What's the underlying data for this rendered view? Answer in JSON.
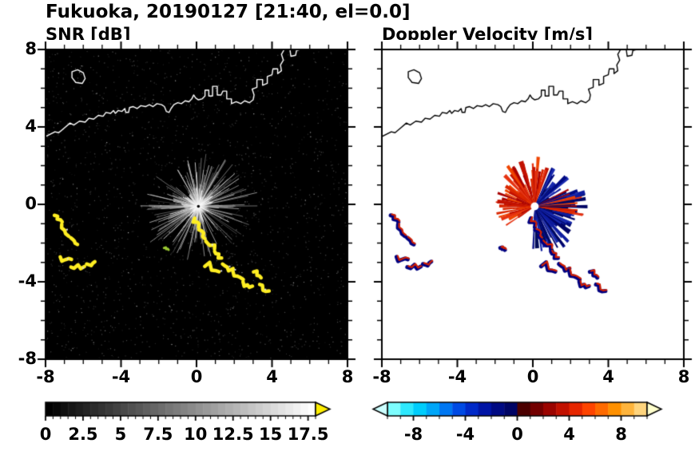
{
  "title": "Fukuoka, 20190127 [21:40, el=0.0]",
  "panels": {
    "snr": {
      "title": "SNR [dB]",
      "background": "#000000",
      "coast_color": "#ffffff",
      "echo_color": "#ffee22",
      "colorbar": {
        "min": 0,
        "max": 18,
        "scale": "grayscale",
        "tick_labels": [
          "0",
          "2.5",
          "5",
          "7.5",
          "10",
          "12.5",
          "15",
          "17.5"
        ],
        "tick_values": [
          0,
          2.5,
          5,
          7.5,
          10,
          12.5,
          15,
          17.5
        ],
        "arrow_color": "#ffee00"
      }
    },
    "velocity": {
      "title": "Doppler Velocity [m/s]",
      "background": "#ffffff",
      "coast_color": "#000000",
      "toward_color": "#000080",
      "away_color": "#d42000",
      "colorbar": {
        "min": -10,
        "max": 10,
        "tick_labels": [
          "-8",
          "-4",
          "0",
          "4",
          "8"
        ],
        "tick_values": [
          -8,
          -4,
          0,
          4,
          8
        ],
        "left_arrow_color": "#ccffff",
        "right_arrow_color": "#ffffcc",
        "segment_colors": [
          "#7dfdfe",
          "#2ee8fd",
          "#00cdfc",
          "#00a6f8",
          "#0077f2",
          "#004ae4",
          "#0029c8",
          "#0014a5",
          "#000a83",
          "#000465",
          "#4b0000",
          "#730000",
          "#9b0400",
          "#c21100",
          "#e62600",
          "#fe4400",
          "#fe6a00",
          "#fe9000",
          "#feb43c",
          "#fed47d"
        ]
      }
    }
  },
  "axes": {
    "x_range": [
      -8,
      8
    ],
    "y_range": [
      -8,
      8
    ],
    "x_tick_labels": [
      "-8",
      "-4",
      "0",
      "4",
      "8"
    ],
    "x_tick_values": [
      -8,
      -4,
      0,
      4,
      8
    ],
    "y_tick_labels": [
      "8",
      "4",
      "0",
      "-4",
      "-8"
    ],
    "y_tick_values": [
      8,
      4,
      0,
      -4,
      -8
    ],
    "minor_tick_step": 1
  },
  "chart_data": [
    {
      "type": "heatmap",
      "title": "SNR [dB]",
      "x_range": [
        -8,
        8
      ],
      "y_range": [
        -8,
        8
      ],
      "x_ticks": [
        -8,
        -4,
        0,
        4,
        8
      ],
      "y_ticks": [
        -8,
        -4,
        0,
        4,
        8
      ],
      "colorbar": {
        "range": [
          0,
          18
        ],
        "ticks": [
          0,
          2.5,
          5,
          7.5,
          10,
          12.5,
          15,
          17.5
        ],
        "scale": "grayscale"
      },
      "radar_site": [
        0.1,
        -0.1
      ],
      "clutter_max_radius": 3.2,
      "echo_tracks": [
        [
          -7.35,
          -0.75,
          0.5,
          -60
        ],
        [
          -7.0,
          -1.35,
          0.7,
          -70
        ],
        [
          -6.55,
          -1.95,
          0.5,
          -50
        ],
        [
          -6.95,
          -2.85,
          0.6,
          -20
        ],
        [
          -6.3,
          -3.25,
          0.7,
          -10
        ],
        [
          -5.6,
          -3.05,
          0.45,
          10
        ],
        [
          0.0,
          -0.95,
          0.5,
          -55
        ],
        [
          0.35,
          -1.5,
          0.55,
          -60
        ],
        [
          0.8,
          -2.05,
          0.6,
          -50
        ],
        [
          1.15,
          -2.6,
          0.5,
          -45
        ],
        [
          0.85,
          -3.2,
          0.8,
          -15
        ],
        [
          1.6,
          -3.3,
          0.6,
          -30
        ],
        [
          2.2,
          -3.65,
          0.7,
          -25
        ],
        [
          2.7,
          -4.15,
          0.55,
          -20
        ],
        [
          3.25,
          -3.6,
          0.5,
          -35
        ],
        [
          3.6,
          -4.3,
          0.6,
          -30
        ],
        [
          -1.6,
          -2.3,
          0.25,
          -40
        ]
      ]
    },
    {
      "type": "heatmap",
      "title": "Doppler Velocity [m/s]",
      "x_range": [
        -8,
        8
      ],
      "y_range": [
        -8,
        8
      ],
      "x_ticks": [
        -8,
        -4,
        0,
        4,
        8
      ],
      "y_ticks": [
        -8,
        -4,
        0,
        4,
        8
      ],
      "colorbar": {
        "range": [
          -10,
          10
        ],
        "ticks": [
          -8,
          -4,
          0,
          4,
          8
        ]
      },
      "radar_site": [
        0.1,
        -0.1
      ],
      "receding_sector_deg": [
        70,
        215
      ],
      "approaching_sector_deg": [
        -95,
        65
      ]
    }
  ],
  "coastline": {
    "main": [
      [
        -8.0,
        3.5
      ],
      [
        -7.5,
        3.75
      ],
      [
        -7.3,
        3.7
      ],
      [
        -7.0,
        3.95
      ],
      [
        -6.7,
        4.2
      ],
      [
        -6.5,
        4.1
      ],
      [
        -6.2,
        4.3
      ],
      [
        -5.9,
        4.25
      ],
      [
        -5.7,
        4.45
      ],
      [
        -5.45,
        4.4
      ],
      [
        -5.2,
        4.6
      ],
      [
        -4.95,
        4.55
      ],
      [
        -4.8,
        4.75
      ],
      [
        -4.55,
        4.7
      ],
      [
        -4.4,
        4.85
      ],
      [
        -4.3,
        4.7
      ],
      [
        -4.15,
        4.85
      ],
      [
        -3.95,
        4.8
      ],
      [
        -3.8,
        4.95
      ],
      [
        -3.75,
        4.75
      ],
      [
        -3.6,
        4.75
      ],
      [
        -3.55,
        5.0
      ],
      [
        -3.35,
        5.05
      ],
      [
        -3.15,
        4.95
      ],
      [
        -2.95,
        5.1
      ],
      [
        -2.7,
        5.05
      ],
      [
        -2.5,
        5.15
      ],
      [
        -2.3,
        5.05
      ],
      [
        -2.1,
        5.2
      ],
      [
        -1.85,
        5.15
      ],
      [
        -1.7,
        5.05
      ],
      [
        -1.6,
        4.8
      ],
      [
        -1.45,
        4.75
      ],
      [
        -1.35,
        4.95
      ],
      [
        -1.2,
        5.15
      ],
      [
        -1.0,
        5.25
      ],
      [
        -0.8,
        5.2
      ],
      [
        -0.6,
        5.35
      ],
      [
        -0.4,
        5.3
      ],
      [
        -0.25,
        5.45
      ],
      [
        -0.15,
        5.65
      ],
      [
        -0.05,
        5.5
      ],
      [
        0.1,
        5.4
      ],
      [
        0.3,
        5.45
      ],
      [
        0.45,
        5.6
      ],
      [
        0.45,
        5.9
      ],
      [
        0.65,
        5.9
      ],
      [
        0.65,
        5.6
      ],
      [
        0.85,
        5.6
      ],
      [
        0.85,
        6.1
      ],
      [
        1.1,
        6.1
      ],
      [
        1.1,
        5.65
      ],
      [
        1.3,
        5.65
      ],
      [
        1.4,
        5.85
      ],
      [
        1.6,
        5.85
      ],
      [
        1.6,
        5.45
      ],
      [
        1.85,
        5.45
      ],
      [
        1.85,
        5.2
      ],
      [
        2.1,
        5.3
      ],
      [
        2.35,
        5.2
      ],
      [
        2.55,
        5.35
      ],
      [
        2.8,
        5.25
      ],
      [
        3.0,
        5.4
      ],
      [
        3.05,
        5.65
      ],
      [
        2.95,
        5.95
      ],
      [
        3.2,
        6.05
      ],
      [
        3.2,
        6.45
      ],
      [
        3.5,
        6.45
      ],
      [
        3.5,
        6.15
      ],
      [
        3.75,
        6.25
      ],
      [
        3.75,
        6.6
      ],
      [
        4.0,
        6.7
      ],
      [
        4.05,
        7.0
      ],
      [
        4.3,
        7.0
      ],
      [
        4.3,
        6.75
      ],
      [
        4.5,
        6.9
      ],
      [
        4.45,
        7.2
      ],
      [
        4.6,
        7.45
      ],
      [
        4.5,
        7.75
      ],
      [
        4.65,
        8.0
      ]
    ],
    "island": [
      [
        -6.6,
        6.85
      ],
      [
        -6.3,
        6.95
      ],
      [
        -6.0,
        6.8
      ],
      [
        -5.9,
        6.5
      ],
      [
        -6.05,
        6.25
      ],
      [
        -6.4,
        6.3
      ],
      [
        -6.6,
        6.55
      ]
    ],
    "structures": [
      [
        [
          4.95,
          8.0
        ],
        [
          5.0,
          7.65
        ],
        [
          5.25,
          7.7
        ],
        [
          5.3,
          7.95
        ],
        [
          5.5,
          8.0
        ]
      ]
    ]
  }
}
